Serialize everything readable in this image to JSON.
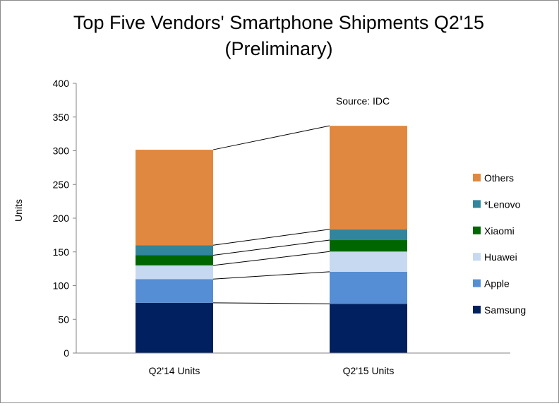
{
  "chart_data": {
    "type": "bar",
    "stacked": true,
    "title": "Top Five Vendors' Smartphone Shipments  Q2'15",
    "subtitle": "(Preliminary)",
    "ylabel": "Units",
    "xlabel": "",
    "ylim": [
      0,
      400
    ],
    "yticks": [
      0,
      50,
      100,
      150,
      200,
      250,
      300,
      350,
      400
    ],
    "categories": [
      "Q2'14 Units",
      "Q2'15 Units"
    ],
    "series": [
      {
        "name": "Samsung",
        "values": [
          74.5,
          73.0
        ],
        "color": "#002060"
      },
      {
        "name": "Apple",
        "values": [
          35.2,
          47.5
        ],
        "color": "#558ed5"
      },
      {
        "name": "Huawei",
        "values": [
          20.3,
          30.0
        ],
        "color": "#c6d9f1"
      },
      {
        "name": "Xiaomi",
        "values": [
          15.0,
          17.0
        ],
        "color": "#006600"
      },
      {
        "name": "*Lenovo",
        "values": [
          15.0,
          16.0
        ],
        "color": "#31859c"
      },
      {
        "name": "Others",
        "values": [
          141.5,
          153.5
        ],
        "color": "#e0883f"
      }
    ],
    "annotation": "Source: IDC",
    "legend": "right",
    "grid": false
  }
}
